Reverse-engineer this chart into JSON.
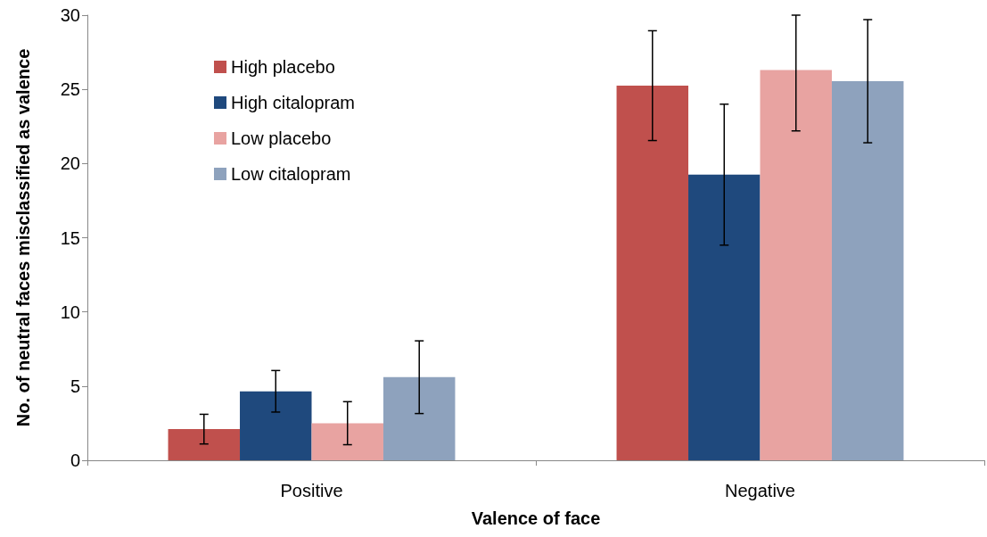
{
  "chart_data": {
    "type": "bar",
    "xlabel": "Valence of face",
    "ylabel": "No. of neutral faces misclassified as valence",
    "categories": [
      "Positive",
      "Negative"
    ],
    "series": [
      {
        "name": "High placebo",
        "color": "#c0504d",
        "values": [
          2.1,
          25.25
        ],
        "errors": [
          1.0,
          3.7
        ]
      },
      {
        "name": "High citalopram",
        "color": "#1f497d",
        "values": [
          4.65,
          19.25
        ],
        "errors": [
          1.4,
          4.75
        ]
      },
      {
        "name": "Low placebo",
        "color": "#e8a3a1",
        "values": [
          2.5,
          26.3
        ],
        "errors": [
          1.45,
          [
            22.2,
            30
          ]
        ]
      },
      {
        "name": "Low citalopram",
        "color": "#8ea2bd",
        "values": [
          5.6,
          25.55
        ],
        "errors": [
          2.45,
          4.15
        ]
      }
    ],
    "ylim": [
      0,
      30
    ],
    "yticks": [
      0,
      5,
      10,
      15,
      20,
      25,
      30
    ],
    "grid": false,
    "legend": "top left"
  }
}
